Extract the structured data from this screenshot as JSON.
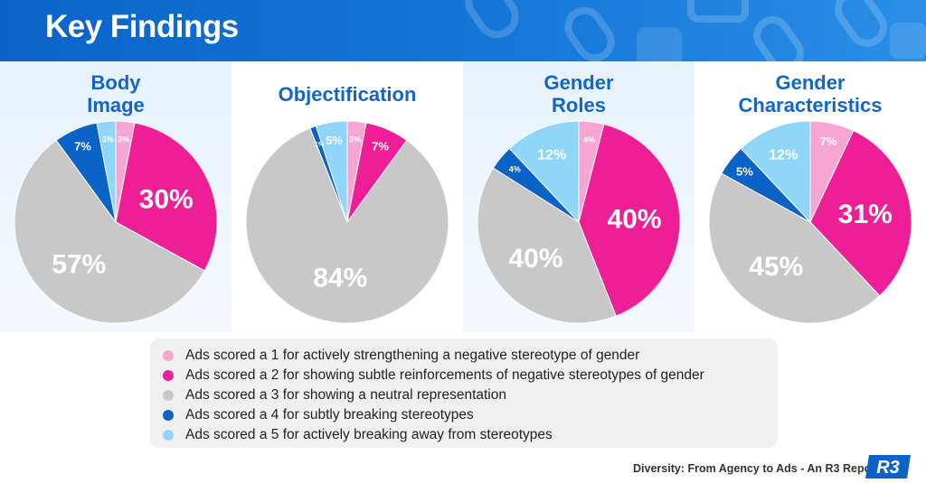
{
  "header": {
    "title": "Key Findings"
  },
  "colors": {
    "score1": "#f7a6d3",
    "score2": "#ee1f96",
    "score3": "#c8c8c8",
    "score4": "#0b62c7",
    "score5": "#8fd6f8"
  },
  "chart_data": [
    {
      "type": "pie",
      "title": "Body\nImage",
      "labels": [
        "1",
        "2",
        "3",
        "4",
        "5"
      ],
      "values": [
        3,
        30,
        57,
        7,
        3
      ],
      "value_labels": [
        "3%",
        "30%",
        "57%",
        "7%",
        "3%"
      ]
    },
    {
      "type": "pie",
      "title": "Objectification",
      "labels": [
        "1",
        "2",
        "3",
        "4",
        "5"
      ],
      "values": [
        3,
        7,
        84,
        1,
        5
      ],
      "value_labels": [
        "3%",
        "7%",
        "84%",
        "1%",
        "5%"
      ]
    },
    {
      "type": "pie",
      "title": "Gender\nRoles",
      "labels": [
        "1",
        "2",
        "3",
        "4",
        "5"
      ],
      "values": [
        4,
        40,
        40,
        4,
        12
      ],
      "value_labels": [
        "4%",
        "40%",
        "40%",
        "4%",
        "12%"
      ]
    },
    {
      "type": "pie",
      "title": "Gender\nCharacteristics",
      "labels": [
        "1",
        "2",
        "3",
        "4",
        "5"
      ],
      "values": [
        7,
        31,
        45,
        5,
        12
      ],
      "value_labels": [
        "7%",
        "31%",
        "45%",
        "5%",
        "12%"
      ]
    }
  ],
  "legend": {
    "items": [
      "Ads scored a 1 for actively strengthening a negative stereotype of gender",
      "Ads scored a 2 for showing subtle reinforcements of negative stereotypes of gender",
      "Ads scored a 3 for showing a neutral representation",
      "Ads scored a 4 for subtly breaking stereotypes",
      "Ads scored a 5 for actively breaking away from stereotypes"
    ]
  },
  "footer": {
    "text": "Diversity: From Agency to Ads - An R3 Report"
  },
  "logo": {
    "text": "R3"
  }
}
